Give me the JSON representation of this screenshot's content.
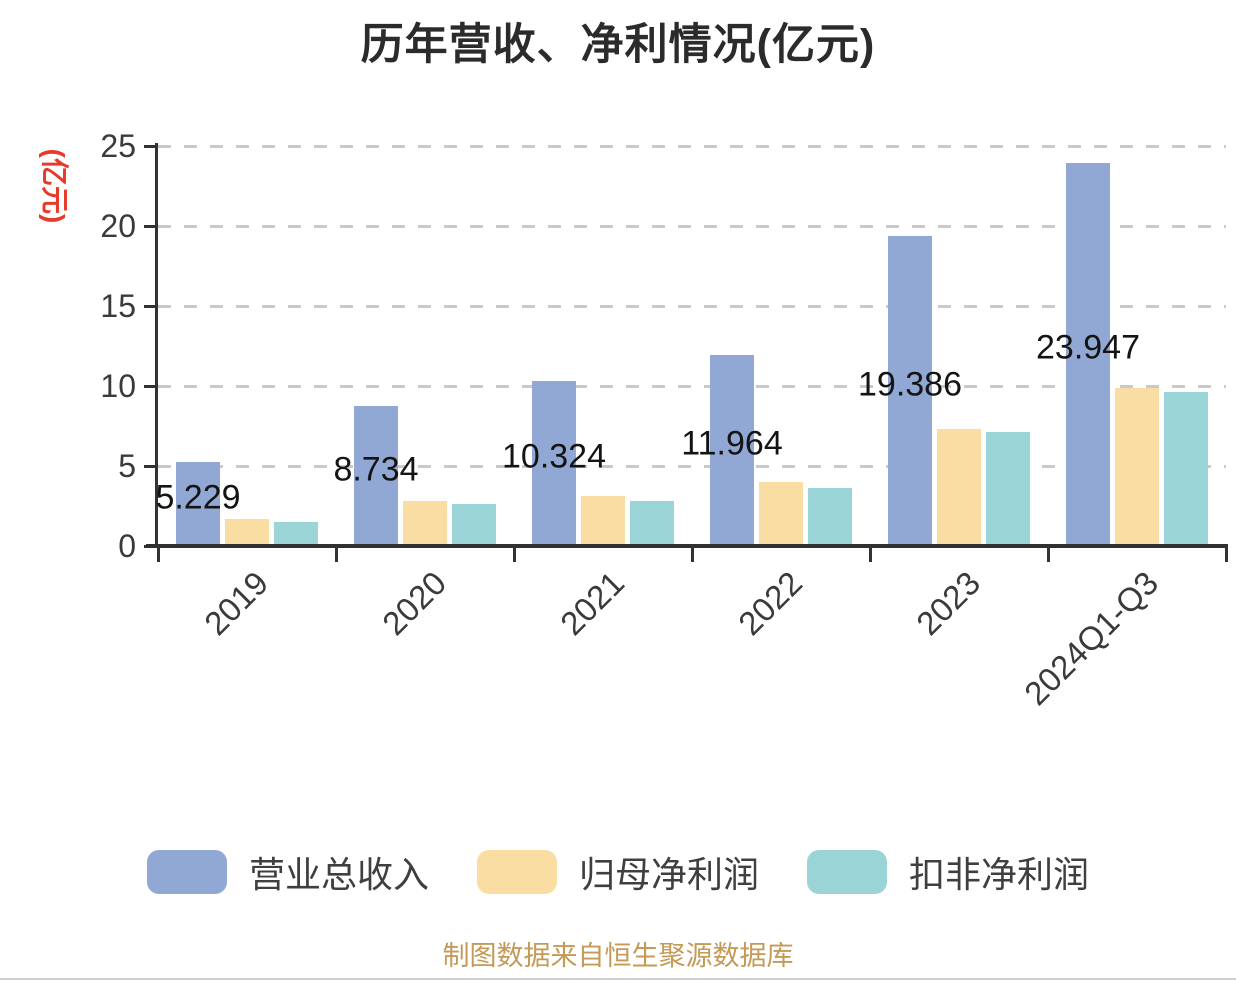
{
  "chart_data": {
    "type": "bar",
    "title": "历年营收、净利情况(亿元)",
    "y_axis_name": "(亿元)",
    "y_axis_name_color": "#e83a2a",
    "categories": [
      "2019",
      "2020",
      "2021",
      "2022",
      "2023",
      "2024Q1-Q3"
    ],
    "series": [
      {
        "name": "营业总收入",
        "key": "total-revenue",
        "color": "#92A8D4",
        "values": [
          5.229,
          8.734,
          10.324,
          11.964,
          19.386,
          23.947
        ],
        "data_labels": [
          "5.229",
          "8.734",
          "10.324",
          "11.964",
          "19.386",
          "23.947"
        ]
      },
      {
        "name": "归母净利润",
        "key": "net-profit-attributable",
        "color": "#FADDA3",
        "values": [
          1.66,
          2.8,
          3.1,
          4.0,
          7.3,
          9.9
        ]
      },
      {
        "name": "扣非净利润",
        "key": "deducted-net-profit",
        "color": "#9AD4D6",
        "values": [
          1.5,
          2.63,
          2.8,
          3.65,
          7.15,
          9.6
        ]
      }
    ],
    "ylim": [
      0,
      25
    ],
    "yticks": [
      0,
      5,
      10,
      15,
      20,
      25
    ],
    "grid": "horizontal-dashed",
    "legend_position": "bottom",
    "x_label_rotation_deg": 45,
    "source_note": "制图数据来自恒生聚源数据库",
    "source_note_color": "#C49A56"
  }
}
